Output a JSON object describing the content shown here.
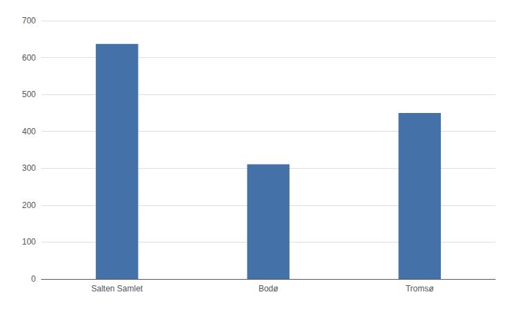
{
  "chart_data": {
    "type": "bar",
    "categories": [
      "Salten Samlet",
      "Bodø",
      "Tromsø"
    ],
    "values": [
      637,
      311,
      450
    ],
    "color": "#4472a8",
    "ylim": [
      0,
      700
    ],
    "yticks": [
      0,
      100,
      200,
      300,
      400,
      500,
      600,
      700
    ],
    "grid": true
  }
}
